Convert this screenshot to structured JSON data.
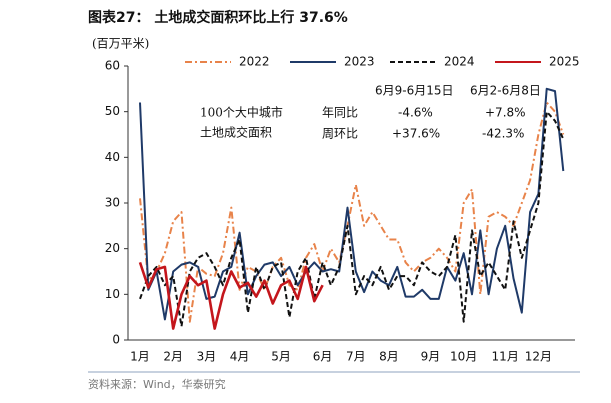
{
  "chart_data": {
    "type": "line",
    "title": "图表27：  土地成交面积环比上行 37.6%",
    "y_label": "(百万平米)",
    "source": "资料来源：Wind，华泰研究",
    "categories": [
      "1月",
      null,
      null,
      null,
      "2月",
      null,
      null,
      null,
      "3月",
      null,
      null,
      null,
      "4月",
      null,
      null,
      null,
      null,
      "5月",
      null,
      null,
      null,
      null,
      "6月",
      null,
      null,
      null,
      "7月",
      null,
      null,
      null,
      "8月",
      null,
      null,
      null,
      null,
      "9月",
      null,
      null,
      null,
      "10月",
      null,
      null,
      null,
      null,
      "11月",
      null,
      null,
      null,
      "12月",
      null,
      null,
      null
    ],
    "series": [
      {
        "name": "2022",
        "color": "#e8834a",
        "style": "dashdot",
        "values": [
          31,
          13,
          15,
          19,
          26,
          28,
          4,
          16,
          14.5,
          14,
          19,
          29,
          11,
          16,
          15,
          11,
          16,
          18,
          12,
          11,
          18,
          21,
          15,
          20,
          17,
          25,
          34,
          25,
          28,
          25,
          22,
          22,
          17,
          15,
          17,
          18,
          20,
          18,
          15,
          30,
          33,
          10,
          27,
          28,
          27,
          25,
          30,
          35,
          45,
          52,
          50,
          45
        ]
      },
      {
        "name": "2023",
        "color": "#1f3a68",
        "style": "solid",
        "values": [
          52,
          11,
          15,
          4.5,
          15,
          16.5,
          17,
          16,
          9,
          9.5,
          15,
          16,
          23.5,
          10,
          14,
          16.5,
          17,
          14,
          16,
          12,
          15,
          17,
          15,
          15.5,
          15,
          29,
          15,
          10.5,
          15,
          13,
          12,
          16,
          9.5,
          9.5,
          11,
          9,
          9,
          16,
          13,
          19,
          10,
          24,
          10,
          20,
          25,
          13.5,
          6,
          28,
          32,
          55,
          54.5,
          37
        ]
      },
      {
        "name": "2024",
        "color": "#111111",
        "style": "dashed",
        "values": [
          9,
          14,
          16,
          12,
          14,
          3,
          15,
          18,
          19,
          16,
          12,
          18,
          22,
          6,
          16,
          11,
          16,
          17,
          5,
          15,
          18,
          9,
          17,
          12,
          16,
          25,
          10,
          14,
          12,
          16,
          11,
          14,
          14,
          12,
          17,
          15,
          14,
          16,
          23,
          4,
          24,
          14,
          17,
          14,
          11,
          26,
          18,
          24,
          30,
          50,
          48,
          44
        ]
      },
      {
        "name": "2025",
        "color": "#c4161c",
        "style": "solid",
        "values": [
          17,
          11.5,
          15.5,
          16,
          2.5,
          10,
          14,
          12,
          13,
          2.5,
          10,
          15,
          11.5,
          12.5,
          9.5,
          13,
          8,
          12,
          13,
          9,
          16,
          8.5,
          12,
          null,
          null,
          null,
          null,
          null,
          null,
          null,
          null,
          null,
          null,
          null,
          null,
          null,
          null,
          null,
          null,
          null,
          null,
          null,
          null,
          null,
          null,
          null,
          null,
          null,
          null,
          null,
          null,
          null
        ]
      }
    ],
    "ylim": [
      0,
      60
    ],
    "yticks": [
      0,
      10,
      20,
      30,
      40,
      50,
      60
    ],
    "annotations": {
      "note": [
        "100个大中城市",
        "土地成交面积"
      ],
      "columns": [
        "6月9-6月15日",
        "6月2-6月8日"
      ],
      "rows": [
        {
          "label": "年同比",
          "values": [
            "-4.6%",
            "+7.8%"
          ]
        },
        {
          "label": "周环比",
          "values": [
            "+37.6%",
            "-42.3%"
          ]
        }
      ]
    }
  }
}
